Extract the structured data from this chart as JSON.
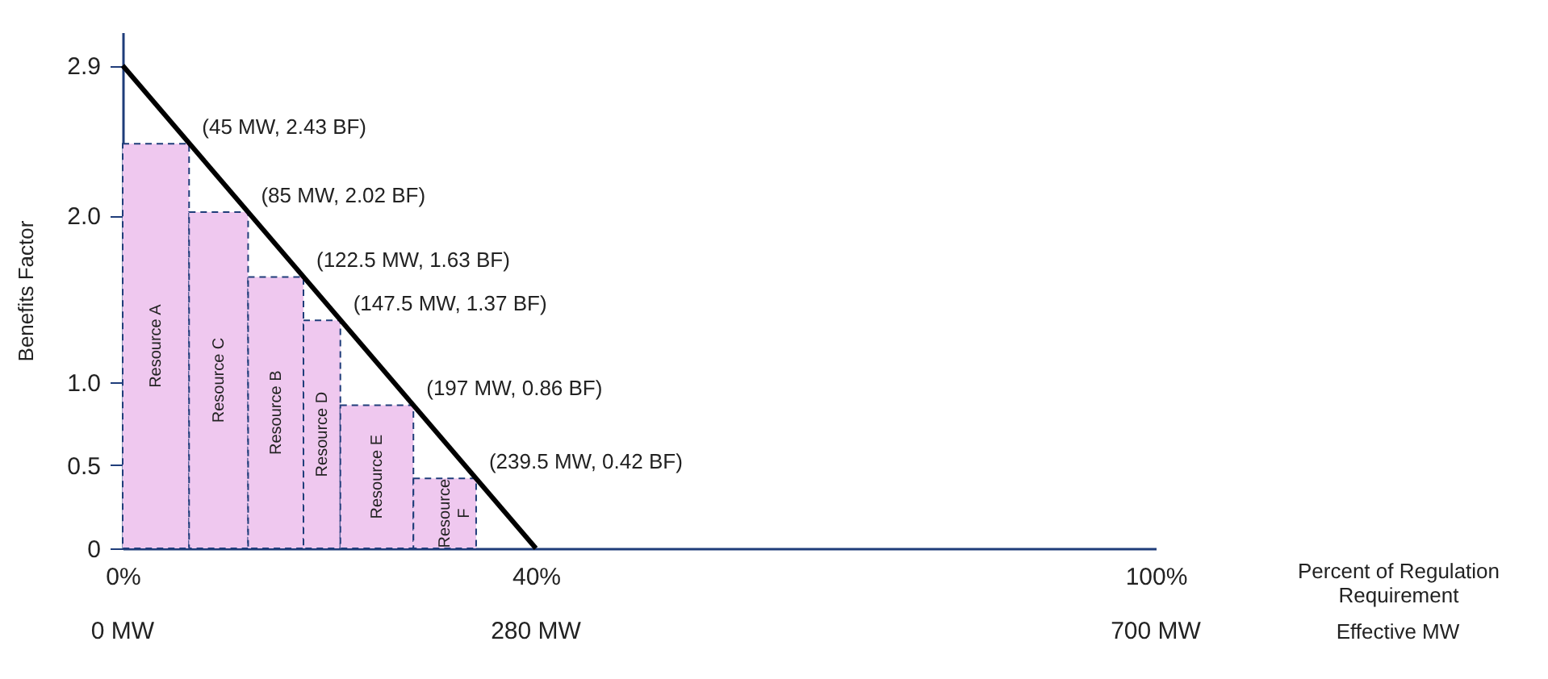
{
  "chart_data": {
    "type": "bar",
    "ylabel": "Benefits Factor",
    "x2label": "Percent of Regulation Requirement",
    "series": [
      {
        "name": "Resource A",
        "color": "#efc8ef",
        "x": [
          22.5
        ],
        "values": [
          2.43
        ]
      },
      {
        "name": "Resource C",
        "color": "#efc8ef",
        "x": [
          65
        ],
        "values": [
          2.02
        ]
      },
      {
        "name": "Resource B",
        "color": "#efc8ef",
        "x": [
          103.75
        ],
        "values": [
          1.63
        ]
      },
      {
        "name": "Resource D",
        "color": "#efc8ef",
        "x": [
          135
        ],
        "values": [
          1.37
        ]
      },
      {
        "name": "Resource E",
        "color": "#efc8ef",
        "x": [
          172.25
        ],
        "values": [
          0.86
        ]
      },
      {
        "name": "Resource F",
        "color": "#efc8ef",
        "x": [
          218.25
        ],
        "values": [
          0.42
        ]
      },
      {
        "type": "line",
        "color": "#000000",
        "x": [
          0,
          280
        ],
        "values": [
          2.9,
          0
        ]
      }
    ],
    "annotations": [
      {
        "text": "(45 MW, 2.43 BF)",
        "x": 45,
        "y": 2.43
      },
      {
        "text": "(85 MW, 2.02 BF)",
        "x": 85,
        "y": 2.02
      },
      {
        "text": "(122.5 MW, 1.63 BF)",
        "x": 122.5,
        "y": 1.63
      },
      {
        "text": "(147.5 MW, 1.37 BF)",
        "x": 147.5,
        "y": 1.37
      },
      {
        "text": "(197 MW, 0.86 BF)",
        "x": 197,
        "y": 0.86
      },
      {
        "text": "(239.5 MW, 0.42 BF)",
        "x": 239.5,
        "y": 0.42
      },
      "Effective MW"
    ],
    "xlim": [
      0,
      700
    ],
    "ylim": [
      0,
      3.1
    ],
    "x2lim": [
      0,
      100
    ],
    "xticks": [
      {
        "value": 0,
        "label": "0 MW"
      },
      {
        "value": 280,
        "label": "280 MW"
      },
      {
        "value": 700,
        "label": "700 MW"
      }
    ],
    "x2ticks": [
      {
        "value": 0,
        "label": "0%"
      },
      {
        "value": 40,
        "label": "40%"
      },
      {
        "value": 100,
        "label": "100%"
      }
    ],
    "yticks": [
      0,
      0.5,
      {
        "value": 1,
        "label": "1.0"
      },
      {
        "value": 2,
        "label": "2.0"
      },
      2.9
    ],
    "grid": false
  }
}
